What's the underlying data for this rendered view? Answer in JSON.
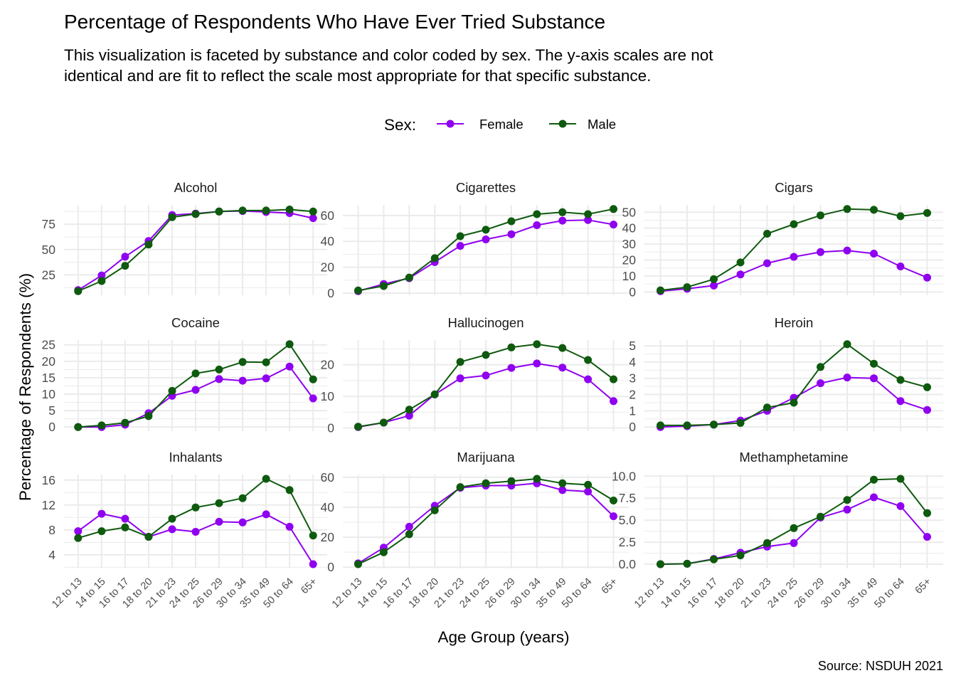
{
  "chart_data": {
    "type": "line",
    "title": "Percentage of Respondents Who Have Ever Tried Substance",
    "subtitle_lines": [
      "This visualization is faceted by substance and color coded by sex. The y-axis scales are not",
      "identical and are fit to reflect the scale most appropriate for that specific substance."
    ],
    "xlabel": "Age Group (years)",
    "ylabel": "Percentage of Respondents (%)",
    "caption": "Source: NSDUH 2021",
    "legend": {
      "title": "Sex:",
      "position": "top",
      "entries": [
        {
          "name": "Female",
          "color": "#9000F0"
        },
        {
          "name": "Male",
          "color": "#0E5A0E"
        }
      ]
    },
    "grid": true,
    "categories": [
      "12 to 13",
      "14 to 15",
      "16 to 17",
      "18 to 20",
      "21 to 23",
      "24 to 25",
      "26 to 29",
      "30 to 34",
      "35 to 49",
      "50 to 64",
      "65+"
    ],
    "facets": [
      {
        "name": "Alcohol",
        "ylim": [
          9,
          90
        ],
        "yticks": [
          25,
          50,
          75
        ],
        "ytick_labels": [
          "25",
          "50",
          "75"
        ],
        "series": [
          {
            "name": "Female",
            "values": [
              10,
              24.5,
              43,
              58.5,
              84,
              85.5,
              87.5,
              88,
              87,
              86,
              81
            ]
          },
          {
            "name": "Male",
            "values": [
              9,
              19,
              34,
              55,
              82,
              85,
              87.5,
              88.5,
              88.5,
              89.5,
              87.5
            ]
          }
        ]
      },
      {
        "name": "Cigarettes",
        "ylim": [
          1.5,
          65
        ],
        "yticks": [
          0,
          20,
          40,
          60
        ],
        "ytick_labels": [
          "0",
          "20",
          "40",
          "60"
        ],
        "series": [
          {
            "name": "Female",
            "values": [
              1.5,
              7,
              11.5,
              24,
              36.5,
              41.5,
              45.5,
              52.5,
              56,
              56.5,
              53
            ]
          },
          {
            "name": "Male",
            "values": [
              2,
              5.5,
              12,
              27,
              44,
              49,
              55.5,
              61,
              62.5,
              61,
              65
            ]
          }
        ]
      },
      {
        "name": "Cigars",
        "ylim": [
          0.5,
          52
        ],
        "yticks": [
          0,
          10,
          20,
          30,
          40,
          50
        ],
        "ytick_labels": [
          "0",
          "10",
          "20",
          "30",
          "40",
          "50"
        ],
        "series": [
          {
            "name": "Female",
            "values": [
              0.5,
              2,
              4,
              11,
              18,
              22,
              25,
              26,
              24,
              16,
              9
            ]
          },
          {
            "name": "Male",
            "values": [
              1,
              3,
              8,
              18.5,
              36.5,
              42.5,
              48,
              52,
              51.5,
              47.5,
              49.5
            ]
          }
        ]
      },
      {
        "name": "Cocaine",
        "ylim": [
          0,
          25.2
        ],
        "yticks": [
          0,
          5,
          10,
          15,
          20,
          25
        ],
        "ytick_labels": [
          "0",
          "5",
          "10",
          "15",
          "20",
          "25"
        ],
        "series": [
          {
            "name": "Female",
            "values": [
              0,
              0,
              0.7,
              4.2,
              9.5,
              11.3,
              14.6,
              14.1,
              14.8,
              18.4,
              8.7
            ]
          },
          {
            "name": "Male",
            "values": [
              0,
              0.5,
              1.3,
              3.3,
              11,
              16.3,
              17.5,
              19.8,
              19.7,
              25.2,
              14.5
            ]
          }
        ]
      },
      {
        "name": "Hallucinogen",
        "ylim": [
          0.3,
          26.5
        ],
        "yticks": [
          0,
          10,
          20
        ],
        "ytick_labels": [
          "0",
          "10",
          "20"
        ],
        "series": [
          {
            "name": "Female",
            "values": [
              0.3,
              1.7,
              3.9,
              10.6,
              15.7,
              16.6,
              19,
              20.4,
              19.1,
              15.4,
              8.5
            ]
          },
          {
            "name": "Male",
            "values": [
              0.4,
              1.7,
              5.8,
              10.6,
              20.9,
              23.1,
              25.5,
              26.5,
              25.3,
              21.5,
              15.4
            ]
          }
        ]
      },
      {
        "name": "Heroin",
        "ylim": [
          0,
          5.1
        ],
        "yticks": [
          0,
          1,
          2,
          3,
          4,
          5
        ],
        "ytick_labels": [
          "0",
          "1",
          "2",
          "3",
          "4",
          "5"
        ],
        "series": [
          {
            "name": "Female",
            "values": [
              0,
              0.05,
              0.15,
              0.4,
              1,
              1.8,
              2.7,
              3.05,
              3,
              1.6,
              1.05
            ]
          },
          {
            "name": "Male",
            "values": [
              0.1,
              0.1,
              0.15,
              0.25,
              1.2,
              1.5,
              3.7,
              5.1,
              3.9,
              2.9,
              2.45
            ]
          }
        ]
      },
      {
        "name": "Inhalants",
        "ylim": [
          2.5,
          16.2
        ],
        "yticks": [
          4,
          8,
          12,
          16
        ],
        "ytick_labels": [
          "4",
          "8",
          "12",
          "16"
        ],
        "series": [
          {
            "name": "Female",
            "values": [
              7.8,
              10.6,
              9.8,
              6.9,
              8.1,
              7.7,
              9.3,
              9.2,
              10.5,
              8.5,
              2.5
            ]
          },
          {
            "name": "Male",
            "values": [
              6.7,
              7.8,
              8.4,
              6.9,
              9.8,
              11.6,
              12.3,
              13.1,
              16.2,
              14.4,
              7.1
            ]
          }
        ]
      },
      {
        "name": "Marijuana",
        "ylim": [
          2,
          59
        ],
        "yticks": [
          0,
          20,
          40,
          60
        ],
        "ytick_labels": [
          "0",
          "20",
          "40",
          "60"
        ],
        "series": [
          {
            "name": "Female",
            "values": [
              2.5,
              13,
              27,
              41,
              53,
              54.5,
              54.5,
              56,
              51.5,
              50.5,
              34
            ]
          },
          {
            "name": "Male",
            "values": [
              2,
              10,
              22,
              38,
              53.5,
              56,
              57.5,
              59,
              56,
              55,
              44.5
            ]
          }
        ]
      },
      {
        "name": "Methamphetamine",
        "ylim": [
          0,
          9.7
        ],
        "yticks": [
          0,
          2.5,
          5,
          7.5,
          10
        ],
        "ytick_labels": [
          "0.0",
          "2.5",
          "5.0",
          "7.5",
          "10.0"
        ],
        "series": [
          {
            "name": "Female",
            "values": [
              0,
              0.05,
              0.6,
              1.3,
              2,
              2.4,
              5.3,
              6.2,
              7.6,
              6.6,
              3.1
            ]
          },
          {
            "name": "Male",
            "values": [
              0,
              0.05,
              0.55,
              1,
              2.4,
              4.1,
              5.4,
              7.3,
              9.6,
              9.7,
              5.8
            ]
          }
        ]
      }
    ]
  }
}
